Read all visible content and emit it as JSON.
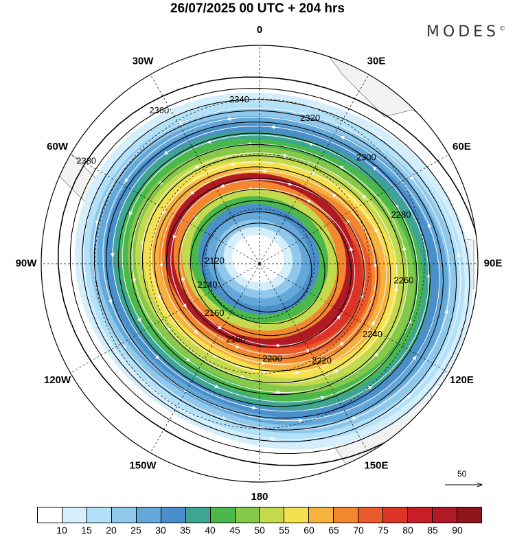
{
  "title": "26/07/2025  00 UTC  + 204 hrs",
  "brand": {
    "name": "MODES",
    "mark": "©"
  },
  "map": {
    "projection": "south polar stereographic",
    "longitude_labels": [
      {
        "text": "0",
        "lon": 0
      },
      {
        "text": "30E",
        "lon": 30
      },
      {
        "text": "60E",
        "lon": 60
      },
      {
        "text": "90E",
        "lon": 90
      },
      {
        "text": "120E",
        "lon": 120
      },
      {
        "text": "150E",
        "lon": 150
      },
      {
        "text": "180",
        "lon": 180
      },
      {
        "text": "150W",
        "lon": -150
      },
      {
        "text": "120W",
        "lon": -120
      },
      {
        "text": "90W",
        "lon": -90
      },
      {
        "text": "60W",
        "lon": -60
      },
      {
        "text": "30W",
        "lon": -30
      }
    ],
    "contour_labels": [
      "2380",
      "2360",
      "2340",
      "2320",
      "2300",
      "2280",
      "2260",
      "2240",
      "2220",
      "2200",
      "2180",
      "2160",
      "2140",
      "2120"
    ],
    "colors": {
      "land": "#f2f2f2",
      "fill_levels": [
        "#ffffff",
        "#d4effb",
        "#b3e1f8",
        "#90c8ec",
        "#64a8d9",
        "#4a8fc9",
        "#3da592",
        "#4bb84b",
        "#86c84a",
        "#c3d94e",
        "#f5e050",
        "#f6b23f",
        "#f2872f",
        "#ea5a2a",
        "#de3327",
        "#c81e26",
        "#b01a24",
        "#8e1519"
      ]
    }
  },
  "reference_vector": {
    "label": "50"
  },
  "colorbar": {
    "ticks": [
      "10",
      "15",
      "20",
      "25",
      "30",
      "35",
      "40",
      "45",
      "50",
      "55",
      "60",
      "65",
      "70",
      "75",
      "80",
      "85",
      "90"
    ],
    "colors": [
      "#ffffff",
      "#d4effb",
      "#b3e1f8",
      "#90c8ec",
      "#64a8d9",
      "#4a8fc9",
      "#3da592",
      "#4bb84b",
      "#86c84a",
      "#c3d94e",
      "#f5e050",
      "#f6b23f",
      "#f2872f",
      "#ea5a2a",
      "#de3327",
      "#c81e26",
      "#b01a24",
      "#8e1519"
    ]
  }
}
